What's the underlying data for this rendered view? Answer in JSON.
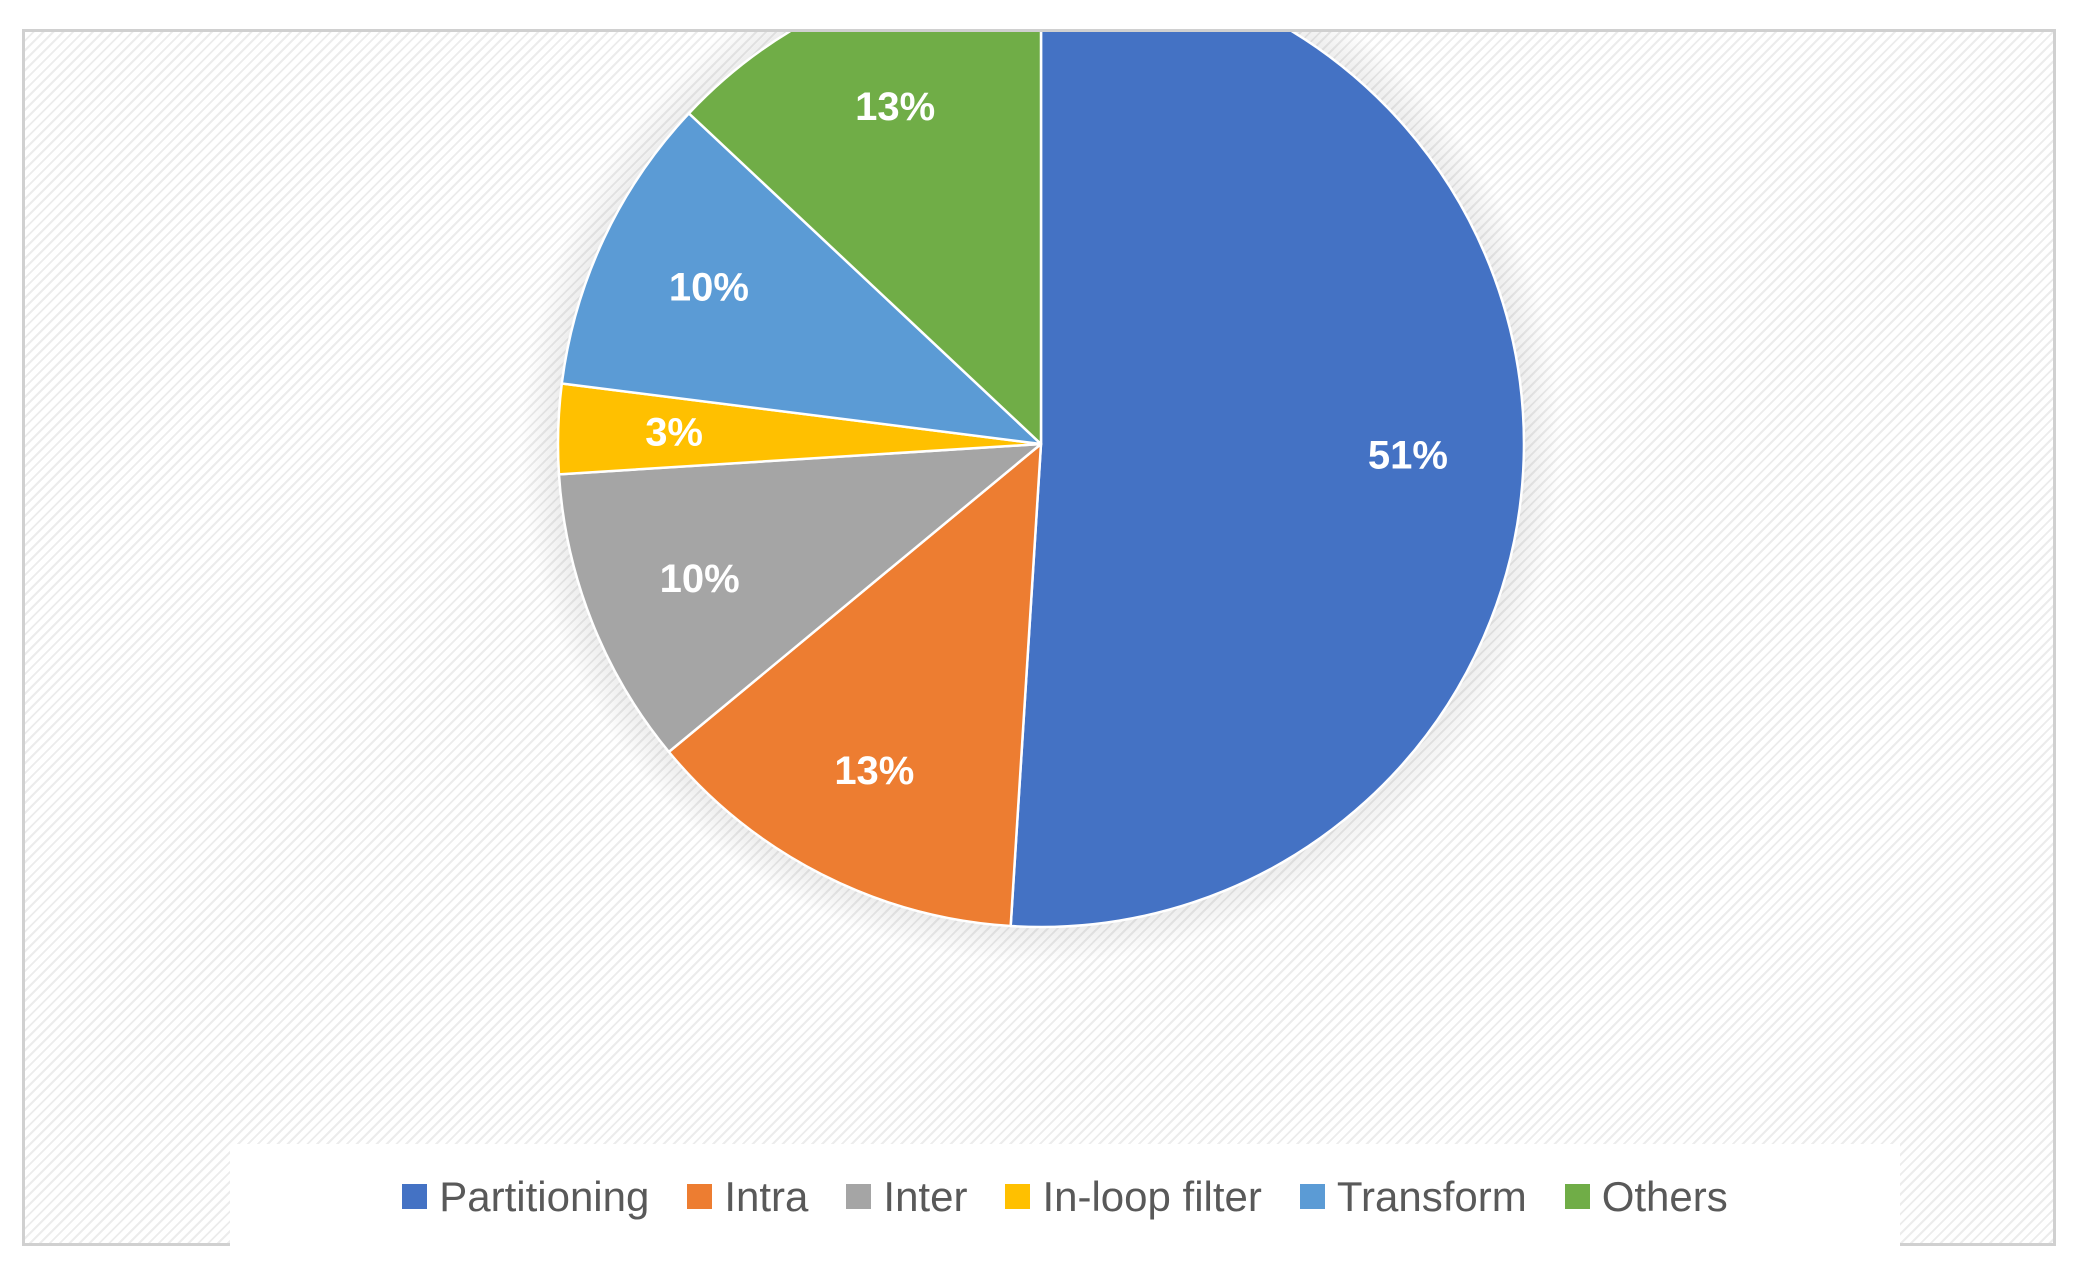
{
  "chart_data": {
    "type": "pie",
    "title": "",
    "start_angle_deg": 0,
    "direction": "clockwise",
    "data_labels": "percent",
    "legend_position": "bottom",
    "slices": [
      {
        "name": "Partitioning",
        "value": 51,
        "label": "51%",
        "color": "#4472C4"
      },
      {
        "name": "Intra",
        "value": 13,
        "label": "13%",
        "color": "#ED7D31"
      },
      {
        "name": "Inter",
        "value": 10,
        "label": "10%",
        "color": "#A5A5A5"
      },
      {
        "name": "In-loop filter",
        "value": 3,
        "label": "3%",
        "color": "#FFC000"
      },
      {
        "name": "Transform",
        "value": 10,
        "label": "10%",
        "color": "#5B9BD5"
      },
      {
        "name": "Others",
        "value": 13,
        "label": "13%",
        "color": "#70AD47"
      }
    ]
  }
}
